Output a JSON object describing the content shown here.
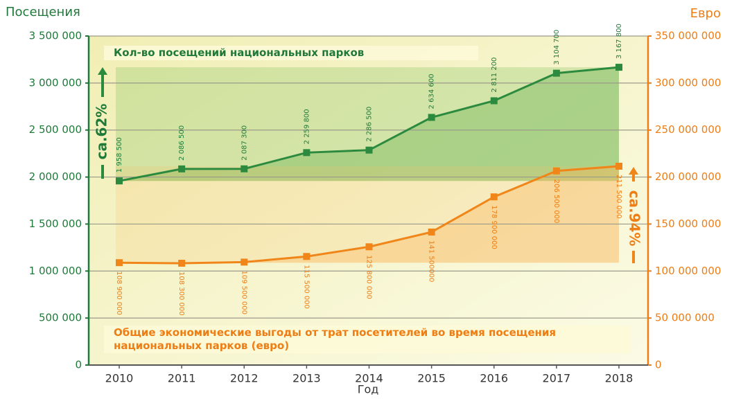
{
  "chart_data": {
    "type": "line",
    "y_label": "Посещения",
    "y2_label": "Евро",
    "x_label": "Год",
    "categories": [
      "2010",
      "2011",
      "2012",
      "2013",
      "2014",
      "2015",
      "2016",
      "2017",
      "2018"
    ],
    "series": [
      {
        "name": "Кол-во посещений национальных парков",
        "color": "#2b8a3e",
        "values": [
          1958500,
          2086500,
          2087300,
          2259800,
          2286500,
          2634600,
          2811200,
          3104700,
          3167800
        ],
        "value_labels": [
          "1 958 500",
          "2 086 500",
          "2 087 300",
          "2 259 800",
          "2 286 500",
          "2 634 600",
          "2 811 200",
          "3 104 700",
          "3 167 800"
        ]
      },
      {
        "name": "Общие экономические выгоды от трат посетителей во время посещения национальных парков (евро)",
        "color": "#f08519",
        "axis": "y2",
        "values": [
          108900000,
          108300000,
          109500000,
          115500000,
          125800000,
          141500000,
          178900000,
          206500000,
          211500000
        ],
        "value_labels": [
          "108 900 000",
          "108 300 000",
          "109 500 000",
          "115 500 000",
          "125 800 000",
          "141 500000",
          "178 900 000",
          "206 500 000",
          "211 500 000"
        ]
      }
    ],
    "annotations": [
      "ca.62%",
      "ca.94%"
    ],
    "ylim": [
      0,
      3500000
    ],
    "yticks": [
      0,
      {
        "value": 500000,
        "label": "500 000"
      },
      {
        "value": 1000000,
        "label": "1 000 000"
      },
      {
        "value": 1500000,
        "label": "1 500 000"
      },
      {
        "value": 2000000,
        "label": "2 000 000"
      },
      {
        "value": 2500000,
        "label": "2 500 000"
      },
      {
        "value": 3000000,
        "label": "3 000 000"
      },
      {
        "value": 3500000,
        "label": "3 500 000"
      }
    ],
    "y2lim": [
      0,
      350000000
    ],
    "y2ticks": [
      0,
      {
        "value": 50000000,
        "label": "50 000 000"
      },
      {
        "value": 100000000,
        "label": "100 000 000"
      },
      {
        "value": 150000000,
        "label": "150 000 000"
      },
      {
        "value": 200000000,
        "label": "200 000 000"
      },
      {
        "value": 250000000,
        "label": "250 000 000"
      },
      {
        "value": 300000000,
        "label": "300 000 000"
      },
      {
        "value": 350000000,
        "label": "350 000 000"
      }
    ],
    "grid": true
  }
}
